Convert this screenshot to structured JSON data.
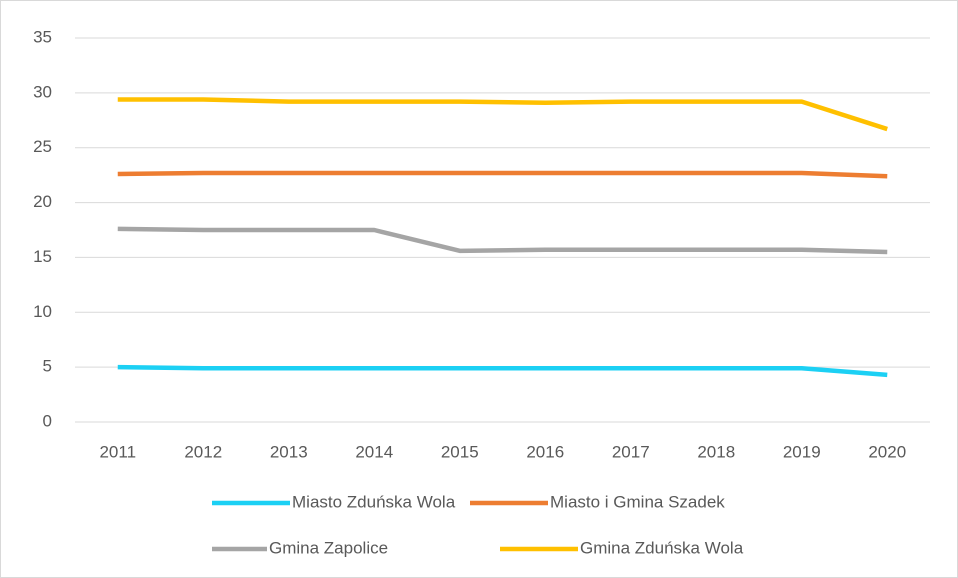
{
  "chart_data": {
    "type": "line",
    "categories": [
      "2011",
      "2012",
      "2013",
      "2014",
      "2015",
      "2016",
      "2017",
      "2018",
      "2019",
      "2020"
    ],
    "series": [
      {
        "name": "Miasto Zduńska Wola",
        "color": "#1cd0f4",
        "values": [
          5.0,
          4.9,
          4.9,
          4.9,
          4.9,
          4.9,
          4.9,
          4.9,
          4.9,
          4.3
        ]
      },
      {
        "name": "Miasto i Gmina Szadek",
        "color": "#ed7d31",
        "values": [
          22.6,
          22.7,
          22.7,
          22.7,
          22.7,
          22.7,
          22.7,
          22.7,
          22.7,
          22.4
        ]
      },
      {
        "name": "Gmina Zapolice",
        "color": "#a5a5a5",
        "values": [
          17.6,
          17.5,
          17.5,
          17.5,
          15.6,
          15.7,
          15.7,
          15.7,
          15.7,
          15.5
        ]
      },
      {
        "name": "Gmina Zduńska Wola",
        "color": "#ffc000",
        "values": [
          29.4,
          29.4,
          29.2,
          29.2,
          29.2,
          29.1,
          29.2,
          29.2,
          29.2,
          26.7
        ]
      }
    ],
    "ylim": [
      0,
      35
    ],
    "yticks": [
      0,
      5,
      10,
      15,
      20,
      25,
      30,
      35
    ],
    "grid": true,
    "legend": "bottom"
  }
}
